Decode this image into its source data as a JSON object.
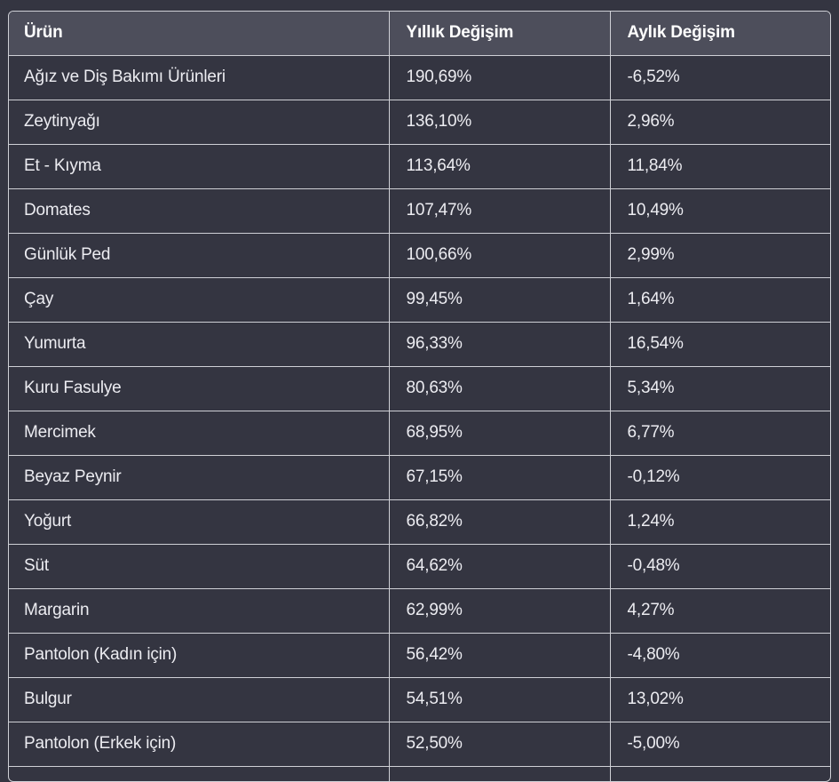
{
  "table": {
    "headers": [
      "Ürün",
      "Yıllık Değişim",
      "Aylık Değişim"
    ],
    "rows": [
      [
        "Ağız ve Diş Bakımı Ürünleri",
        "190,69%",
        "-6,52%"
      ],
      [
        "Zeytinyağı",
        "136,10%",
        "2,96%"
      ],
      [
        "Et - Kıyma",
        "113,64%",
        "11,84%"
      ],
      [
        "Domates",
        "107,47%",
        "10,49%"
      ],
      [
        "Günlük Ped",
        "100,66%",
        "2,99%"
      ],
      [
        "Çay",
        "99,45%",
        "1,64%"
      ],
      [
        "Yumurta",
        "96,33%",
        "16,54%"
      ],
      [
        "Kuru Fasulye",
        "80,63%",
        "5,34%"
      ],
      [
        "Mercimek",
        "68,95%",
        "6,77%"
      ],
      [
        "Beyaz Peynir",
        "67,15%",
        "-0,12%"
      ],
      [
        "Yoğurt",
        "66,82%",
        "1,24%"
      ],
      [
        "Süt",
        "64,62%",
        "-0,48%"
      ],
      [
        "Margarin",
        "62,99%",
        "4,27%"
      ],
      [
        "Pantolon (Kadın için)",
        "56,42%",
        "-4,80%"
      ],
      [
        "Bulgur",
        "54,51%",
        "13,02%"
      ],
      [
        "Pantolon (Erkek için)",
        "52,50%",
        "-5,00%"
      ],
      [
        "",
        "",
        ""
      ]
    ]
  }
}
